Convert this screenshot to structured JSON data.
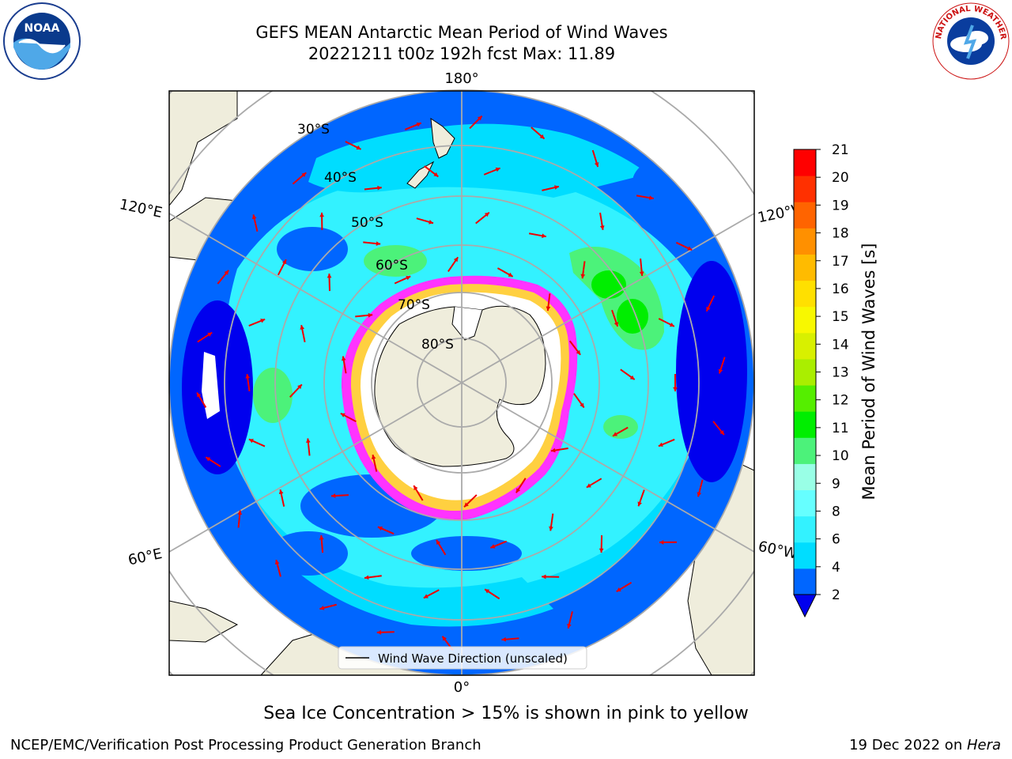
{
  "title": {
    "line1": "GEFS MEAN Antarctic Mean Period of Wind Waves",
    "line2": "20221211 t00z 192h fcst   Max: 11.89"
  },
  "map": {
    "longitude_labels": {
      "top": "180°",
      "bottom": "0°",
      "left_upper": "120°E",
      "left_lower": "60°E",
      "right_upper": "120°W",
      "right_lower": "60°W"
    },
    "latitude_labels": [
      "30°S",
      "40°S",
      "50°S",
      "60°S",
      "70°S",
      "80°S"
    ],
    "legend_label": "Wind Wave Direction (unscaled)",
    "colors": {
      "land": "#efeddc",
      "ice": "#ffffff",
      "ice_edge": [
        "#ff33ff",
        "#ffd040",
        "#ffa020"
      ],
      "arrow": "#ee0000",
      "grid": "#aaaaaa"
    }
  },
  "colorbar": {
    "label": "Mean Period of Wind Waves [s]",
    "ticks": [
      "2",
      "4",
      "6",
      "8",
      "9",
      "10",
      "11",
      "12",
      "13",
      "14",
      "15",
      "16",
      "17",
      "18",
      "19",
      "20",
      "21"
    ],
    "colors": [
      "#0066ff",
      "#00ddff",
      "#33f2ff",
      "#66ffff",
      "#99ffe6",
      "#4cf27a",
      "#00ee00",
      "#55ee00",
      "#aaee00",
      "#d8f000",
      "#f8f800",
      "#ffe000",
      "#ffbb00",
      "#ff9000",
      "#ff6400",
      "#ff3000",
      "#ff0000"
    ],
    "under_color": "#0000ee"
  },
  "caption": "Sea Ice Concentration > 15% is shown in pink to yellow",
  "footer": {
    "left": "NCEP/EMC/Verification Post Processing Product Generation Branch",
    "right_prefix": "19 Dec 2022 on ",
    "right_host": "Hera"
  },
  "logos": {
    "noaa_text": "NOAA",
    "nws_text": "NATIONAL WEATHER SERVICE"
  }
}
